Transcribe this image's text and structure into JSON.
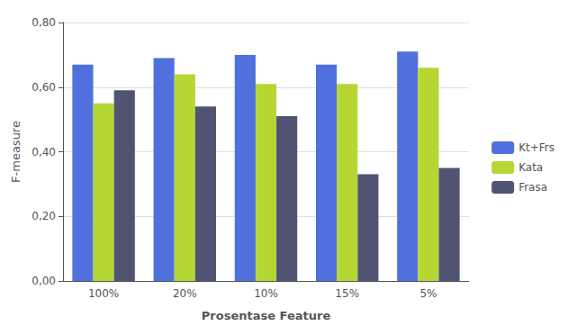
{
  "chart_data": {
    "type": "bar",
    "categories": [
      "100%",
      "20%",
      "10%",
      "15%",
      "5%"
    ],
    "series": [
      {
        "name": "Kt+Frs",
        "values": [
          0.67,
          0.69,
          0.7,
          0.67,
          0.71
        ]
      },
      {
        "name": "Kata",
        "values": [
          0.55,
          0.64,
          0.61,
          0.61,
          0.66
        ]
      },
      {
        "name": "Frasa",
        "values": [
          0.59,
          0.54,
          0.51,
          0.33,
          0.35
        ]
      }
    ],
    "xlabel": "Prosentase Feature",
    "ylabel": "F-measure",
    "ylim": [
      0.0,
      0.8
    ],
    "yticks": [
      {
        "value": 0.0,
        "label": "0,00"
      },
      {
        "value": 0.2,
        "label": "0,20"
      },
      {
        "value": 0.4,
        "label": "0,40"
      },
      {
        "value": 0.6,
        "label": "0,60"
      },
      {
        "value": 0.8,
        "label": "0,80"
      }
    ],
    "grid": true,
    "legend": "right"
  }
}
